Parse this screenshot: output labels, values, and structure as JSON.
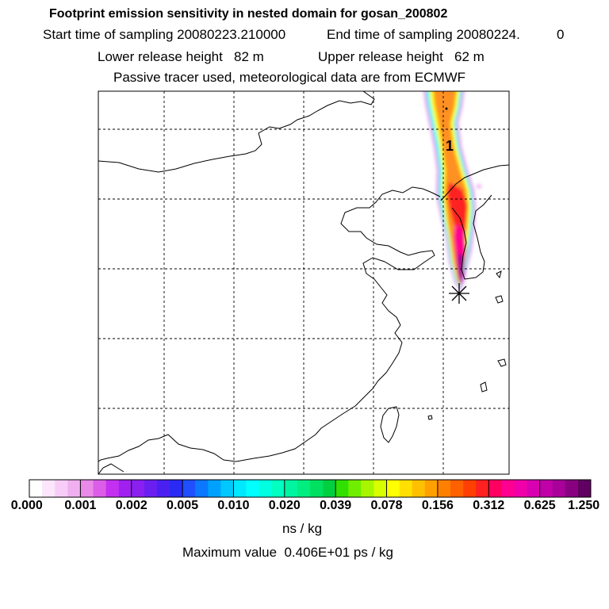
{
  "header": {
    "title": "Footprint emission sensitivity in nested domain for gosan_200802",
    "start_label": "Start time of sampling 20080223.210000",
    "end_label": "End time of sampling 20080224.",
    "end_suffix": "0",
    "lower_label": "Lower release height   82 m",
    "upper_label": "Upper release height   62 m",
    "tracer_line": "Passive tracer used, meteorological data are from ECMWF"
  },
  "map": {
    "plume_label": "1",
    "colors": {
      "frame": "#000000",
      "grid": "#000000",
      "coast": "#000000"
    }
  },
  "colorbar": {
    "tick_labels": [
      "0.000",
      "0.001",
      "0.002",
      "0.005",
      "0.010",
      "0.020",
      "0.039",
      "0.078",
      "0.156",
      "0.312",
      "0.625",
      "1.250"
    ],
    "colors": [
      "#ffffff",
      "#fbe6fb",
      "#f7cdf7",
      "#f0b0f0",
      "#e98ae9",
      "#dc5ee8",
      "#c430f0",
      "#a020f0",
      "#8a20f0",
      "#6a1ff0",
      "#4a20f0",
      "#2a2af5",
      "#1f4fff",
      "#0a78ff",
      "#00a0ff",
      "#00c8ff",
      "#00e8ff",
      "#00ffff",
      "#00ffe0",
      "#00ffc0",
      "#00f5a0",
      "#00ee80",
      "#00e060",
      "#00d040",
      "#30e000",
      "#70ee00",
      "#a8f500",
      "#d8ff00",
      "#ffff00",
      "#ffe000",
      "#ffc000",
      "#ffa000",
      "#ff8000",
      "#ff6000",
      "#ff4000",
      "#ff2020",
      "#ff0060",
      "#ff0090",
      "#f000a8",
      "#d800b0",
      "#c000a8",
      "#a80098",
      "#880080",
      "#600060"
    ],
    "unit": "ns / kg",
    "max_label": "Maximum value  0.406E+01 ps / kg"
  }
}
